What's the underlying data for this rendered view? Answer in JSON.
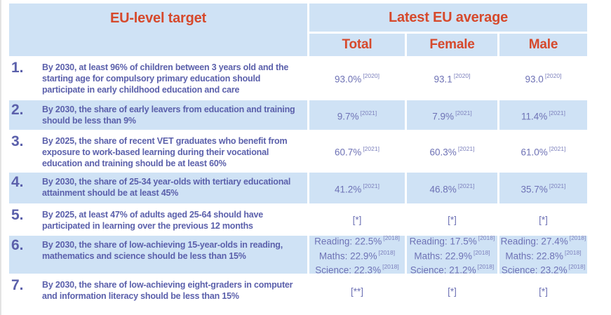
{
  "colors": {
    "header_text": "#d6492c",
    "row_stripe_blue": "#cfe2f5",
    "target_text": "#5b60ab",
    "value_text": "#6e72b5"
  },
  "chart_data": {
    "type": "table",
    "title": "EU-level targets vs Latest EU average",
    "header": {
      "target_col": "EU-level target",
      "group_col": "Latest EU average",
      "sub_columns": [
        "Total",
        "Female",
        "Male"
      ]
    },
    "rows": [
      {
        "num": "1.",
        "target": "By 2030, at least 96% of children between 3 years old and the starting age for compulsory primary education should participate in early childhood education and care",
        "cells": [
          [
            {
              "v": "93.0%",
              "n": "[2020]"
            }
          ],
          [
            {
              "v": "93.1",
              "n": "[2020]"
            }
          ],
          [
            {
              "v": "93.0",
              "n": "[2020]"
            }
          ]
        ]
      },
      {
        "num": "2.",
        "target": "By 2030, the share of early leavers from education and training should be less than 9%",
        "cells": [
          [
            {
              "v": "9.7%",
              "n": "[2021]"
            }
          ],
          [
            {
              "v": "7.9%",
              "n": "[2021]"
            }
          ],
          [
            {
              "v": "11.4%",
              "n": "[2021]"
            }
          ]
        ]
      },
      {
        "num": "3.",
        "target": "By 2025, the share of recent VET graduates who benefit from exposure to work-based learning during their vocational education and training should be at least 60%",
        "cells": [
          [
            {
              "v": "60.7%",
              "n": "[2021]"
            }
          ],
          [
            {
              "v": "60.3%",
              "n": "[2021]"
            }
          ],
          [
            {
              "v": "61.0%",
              "n": "[2021]"
            }
          ]
        ]
      },
      {
        "num": "4.",
        "target": "By 2030, the share of 25-34 year-olds with tertiary educational attainment should be at least 45%",
        "cells": [
          [
            {
              "v": "41.2%",
              "n": "[2021]"
            }
          ],
          [
            {
              "v": "46.8%",
              "n": "[2021]"
            }
          ],
          [
            {
              "v": "35.7%",
              "n": "[2021]"
            }
          ]
        ]
      },
      {
        "num": "5.",
        "target": "By 2025, at least 47% of adults aged 25-64 should have participated in learning over the previous 12 months",
        "cells": [
          [
            {
              "v": "[*]"
            }
          ],
          [
            {
              "v": "[*]"
            }
          ],
          [
            {
              "v": "[*]"
            }
          ]
        ]
      },
      {
        "num": "6.",
        "target": "By 2030, the share of low-achieving 15-year-olds in reading, mathematics and science should be less than 15%",
        "cells": [
          [
            {
              "v": "Reading: 22.5%",
              "n": "[2018]"
            },
            {
              "v": "Maths: 22.9%",
              "n": "[2018]"
            },
            {
              "v": "Science: 22.3%",
              "n": "[2018]"
            }
          ],
          [
            {
              "v": "Reading: 17.5%",
              "n": "[2018]"
            },
            {
              "v": "Maths: 22.9%",
              "n": "[2018]"
            },
            {
              "v": "Science: 21.2%",
              "n": "[2018]"
            }
          ],
          [
            {
              "v": "Reading: 27.4%",
              "n": "[2018]"
            },
            {
              "v": "Maths: 22.8%",
              "n": "[2018]"
            },
            {
              "v": "Science: 23.2%",
              "n": "[2018]"
            }
          ]
        ]
      },
      {
        "num": "7.",
        "target": "By 2030, the share of low-achieving eight-graders in computer and information literacy should be less than 15%",
        "cells": [
          [
            {
              "v": "[**]"
            }
          ],
          [
            {
              "v": "[*]"
            }
          ],
          [
            {
              "v": "[*]"
            }
          ]
        ]
      }
    ]
  }
}
